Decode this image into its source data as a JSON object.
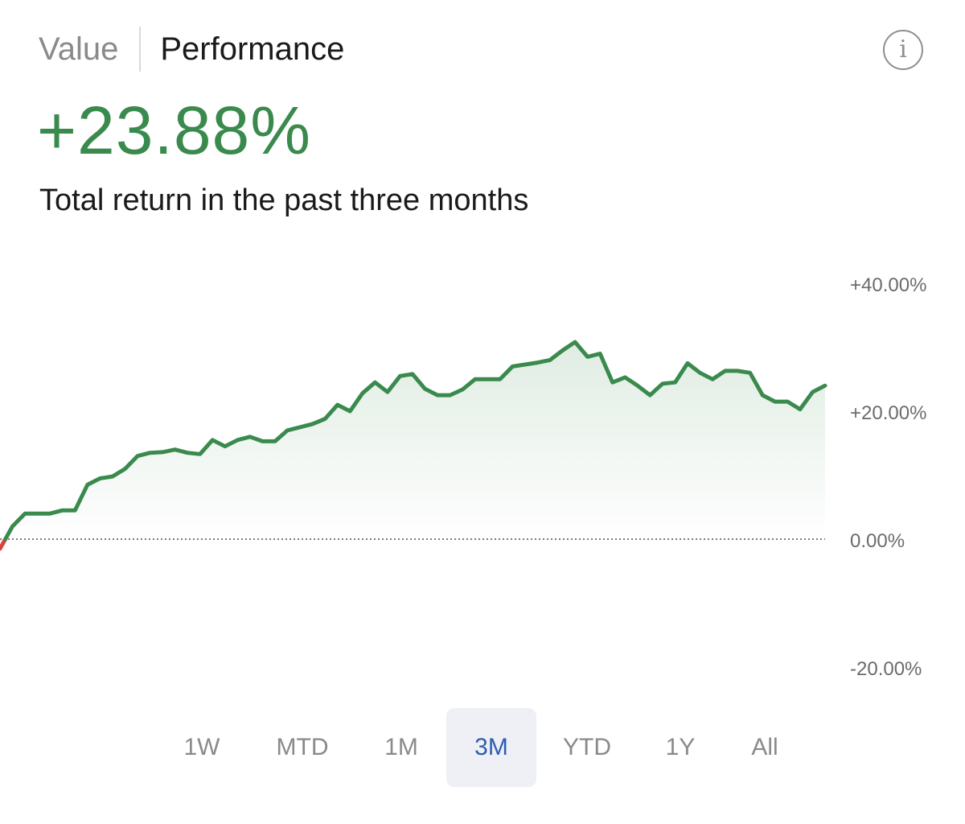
{
  "tabs": {
    "value_label": "Value",
    "performance_label": "Performance",
    "active": "Performance"
  },
  "info_icon": "info-icon",
  "headline": {
    "value": "+23.88%",
    "subtitle": "Total return in the past three months"
  },
  "colors": {
    "positive": "#3a8a4e",
    "negative": "#d9453b",
    "active_range": "#2d5db0",
    "active_range_bg": "#eef0f5"
  },
  "chart_data": {
    "type": "line",
    "title": "",
    "xlabel": "",
    "ylabel": "",
    "ylim": [
      -20,
      40
    ],
    "yticks": [
      40,
      20,
      0,
      -20
    ],
    "ytick_labels": [
      "+40.00%",
      "+20.00%",
      "0.00%",
      "-20.00%"
    ],
    "baseline": 0,
    "baseline_style": "dotted",
    "grid": false,
    "legend": "none",
    "series": [
      {
        "values": [
          -1.5,
          2.0,
          4.0,
          4.0,
          4.0,
          4.5,
          4.5,
          8.5,
          9.5,
          9.8,
          11.0,
          13.0,
          13.5,
          13.6,
          14.0,
          13.5,
          13.3,
          15.5,
          14.5,
          15.5,
          16.0,
          15.3,
          15.3,
          17.0,
          17.5,
          18.0,
          18.8,
          21.0,
          20.0,
          22.8,
          24.5,
          23.0,
          25.5,
          25.8,
          23.5,
          22.5,
          22.5,
          23.4,
          25.0,
          25.0,
          25.0,
          27.0,
          27.3,
          27.6,
          28.0,
          29.5,
          30.8,
          28.5,
          29.0,
          24.5,
          25.3,
          24.0,
          22.5,
          24.3,
          24.5,
          27.5,
          26.0,
          25.0,
          26.3,
          26.3,
          26.0,
          22.5,
          21.5,
          21.5,
          20.3,
          23.0,
          24.0
        ]
      }
    ]
  },
  "ranges": [
    {
      "label": "1W",
      "active": false
    },
    {
      "label": "MTD",
      "active": false
    },
    {
      "label": "1M",
      "active": false
    },
    {
      "label": "3M",
      "active": true
    },
    {
      "label": "YTD",
      "active": false
    },
    {
      "label": "1Y",
      "active": false
    },
    {
      "label": "All",
      "active": false
    }
  ]
}
